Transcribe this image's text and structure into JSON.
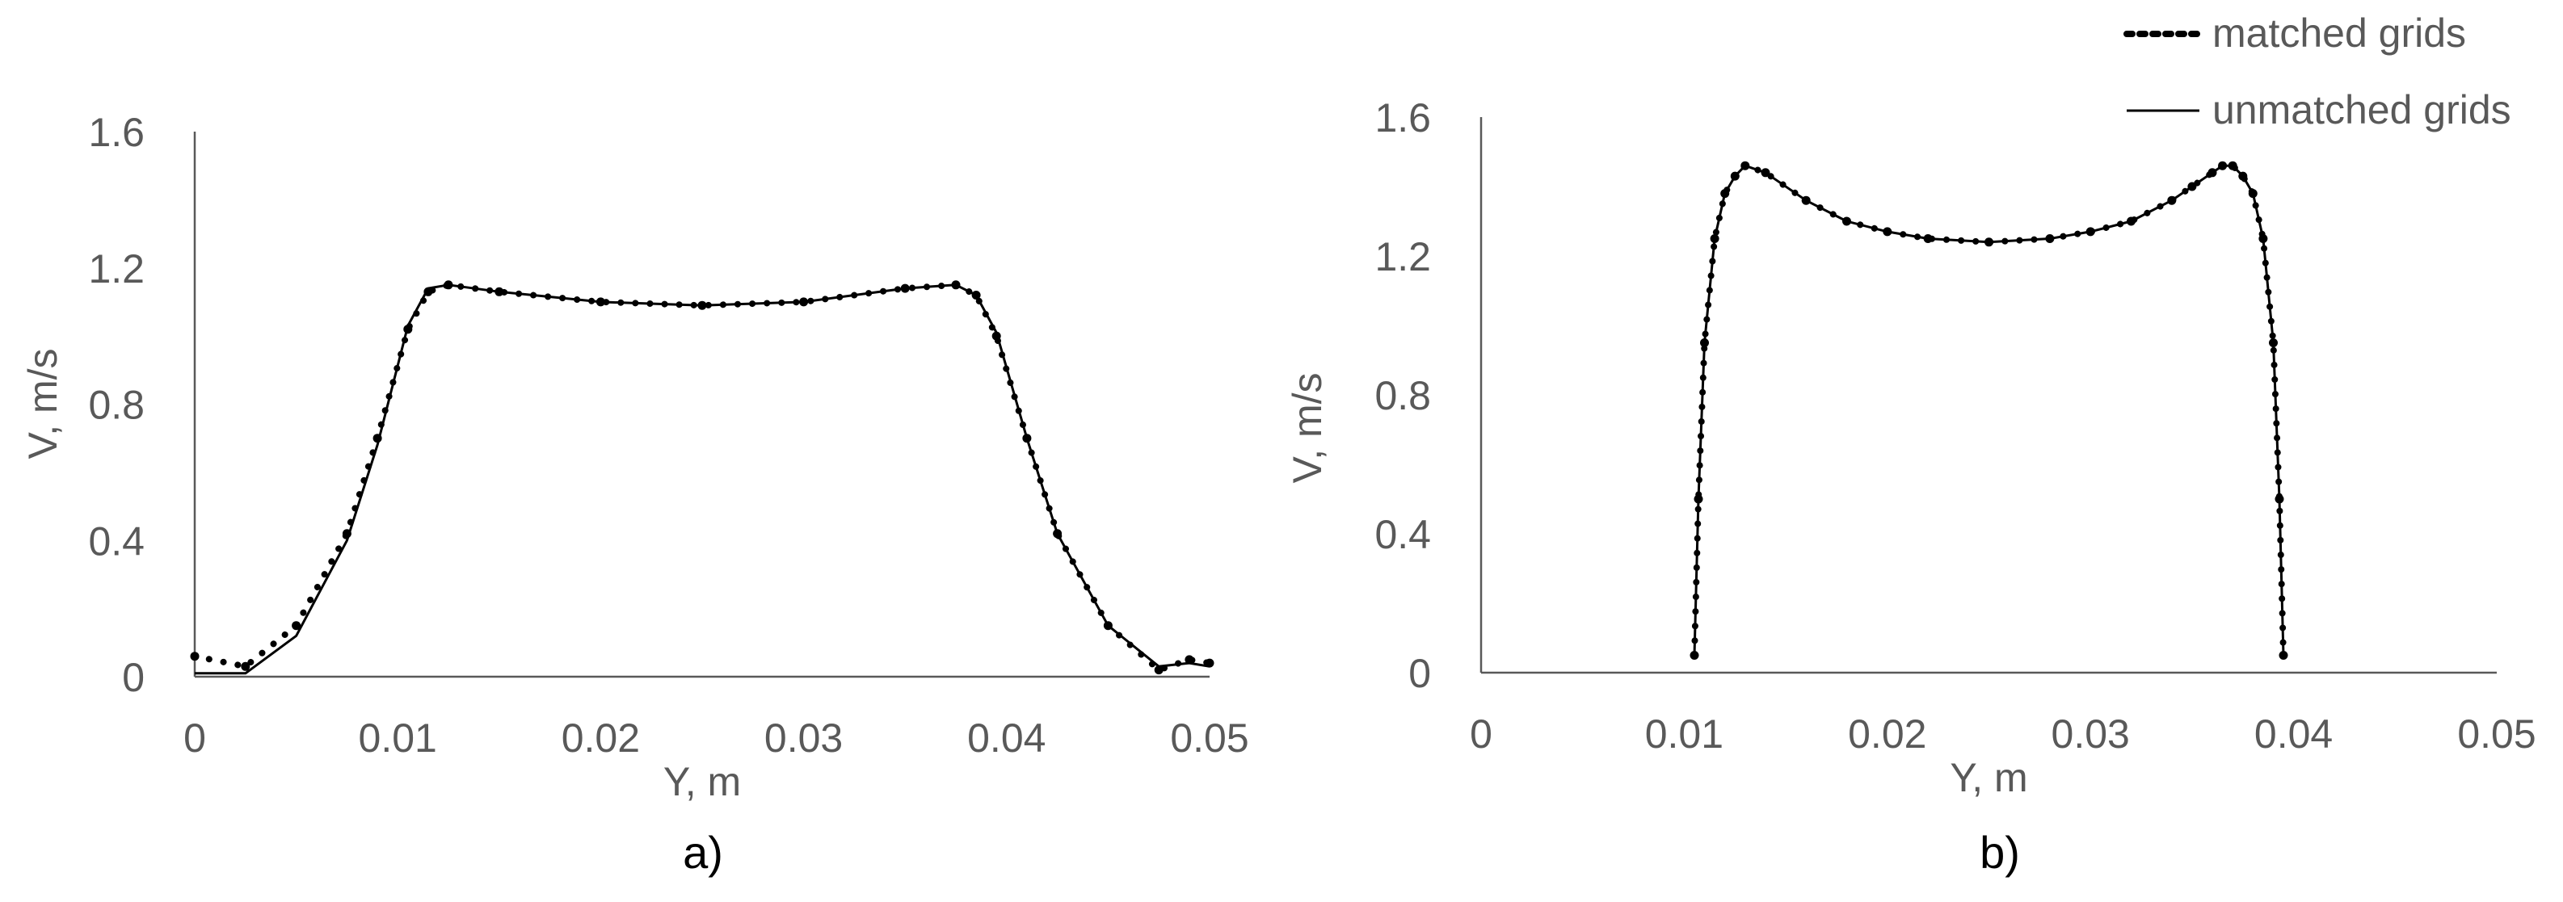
{
  "colors": {
    "axis": "#595959",
    "series": "#000000",
    "text": "#595959"
  },
  "legend": {
    "placement": "top-right",
    "items": [
      {
        "label": "matched grids",
        "style": "dotted"
      },
      {
        "label": "unmatched grids",
        "style": "solid"
      }
    ]
  },
  "chart_data": [
    {
      "type": "line",
      "panel_label": "a)",
      "xlabel": "Y, m",
      "ylabel": "V, m/s",
      "xlim": [
        0,
        0.05
      ],
      "ylim": [
        0,
        1.6
      ],
      "xticks": [
        "0",
        "0.01",
        "0.02",
        "0.03",
        "0.04",
        "0.05"
      ],
      "yticks": [
        "0",
        "0.4",
        "0.8",
        "1.2",
        "1.6"
      ],
      "grid": false,
      "series": [
        {
          "name": "matched grids",
          "style": "dotted",
          "x": [
            0,
            0.0025,
            0.005,
            0.0075,
            0.009,
            0.0105,
            0.0115,
            0.0125,
            0.015,
            0.02,
            0.025,
            0.03,
            0.035,
            0.0375,
            0.0385,
            0.0395,
            0.041,
            0.0425,
            0.045,
            0.0475,
            0.049,
            0.05
          ],
          "y": [
            0.06,
            0.03,
            0.15,
            0.42,
            0.7,
            1.02,
            1.13,
            1.15,
            1.13,
            1.1,
            1.09,
            1.1,
            1.14,
            1.15,
            1.12,
            1.0,
            0.7,
            0.42,
            0.15,
            0.02,
            0.05,
            0.04
          ]
        },
        {
          "name": "unmatched grids",
          "style": "solid",
          "x": [
            0,
            0.0025,
            0.005,
            0.0075,
            0.009,
            0.0105,
            0.0115,
            0.0125,
            0.015,
            0.02,
            0.025,
            0.03,
            0.035,
            0.0375,
            0.0385,
            0.0395,
            0.041,
            0.0425,
            0.045,
            0.0475,
            0.049,
            0.05
          ],
          "y": [
            0.01,
            0.01,
            0.12,
            0.4,
            0.68,
            1.03,
            1.14,
            1.15,
            1.13,
            1.1,
            1.09,
            1.1,
            1.14,
            1.15,
            1.12,
            1.01,
            0.7,
            0.42,
            0.15,
            0.03,
            0.04,
            0.03
          ]
        }
      ]
    },
    {
      "type": "line",
      "panel_label": "b)",
      "xlabel": "Y, m",
      "ylabel": "V, m/s",
      "xlim": [
        0,
        0.05
      ],
      "ylim": [
        0,
        1.6
      ],
      "xticks": [
        "0",
        "0.01",
        "0.02",
        "0.03",
        "0.04",
        "0.05"
      ],
      "yticks": [
        "0",
        "0.4",
        "0.8",
        "1.2",
        "1.6"
      ],
      "grid": false,
      "series": [
        {
          "name": "matched grids",
          "style": "dotted",
          "x": [
            0.0105,
            0.0107,
            0.011,
            0.0115,
            0.012,
            0.0125,
            0.013,
            0.014,
            0.016,
            0.018,
            0.02,
            0.022,
            0.025,
            0.028,
            0.03,
            0.032,
            0.034,
            0.035,
            0.036,
            0.0365,
            0.037,
            0.0375,
            0.038,
            0.0385,
            0.039,
            0.0393,
            0.0395
          ],
          "y": [
            0.05,
            0.5,
            0.95,
            1.25,
            1.38,
            1.43,
            1.46,
            1.44,
            1.36,
            1.3,
            1.27,
            1.25,
            1.24,
            1.25,
            1.27,
            1.3,
            1.36,
            1.4,
            1.44,
            1.46,
            1.46,
            1.43,
            1.38,
            1.25,
            0.95,
            0.5,
            0.05
          ]
        },
        {
          "name": "unmatched grids",
          "style": "solid",
          "x": [
            0.0105,
            0.0107,
            0.011,
            0.0115,
            0.012,
            0.0125,
            0.013,
            0.014,
            0.016,
            0.018,
            0.02,
            0.022,
            0.025,
            0.028,
            0.03,
            0.032,
            0.034,
            0.035,
            0.036,
            0.0365,
            0.037,
            0.0375,
            0.038,
            0.0385,
            0.039,
            0.0393,
            0.0395
          ],
          "y": [
            0.05,
            0.5,
            0.95,
            1.25,
            1.38,
            1.43,
            1.46,
            1.44,
            1.36,
            1.3,
            1.27,
            1.25,
            1.24,
            1.25,
            1.27,
            1.3,
            1.36,
            1.4,
            1.44,
            1.46,
            1.46,
            1.43,
            1.38,
            1.25,
            0.95,
            0.5,
            0.05
          ]
        }
      ]
    }
  ]
}
